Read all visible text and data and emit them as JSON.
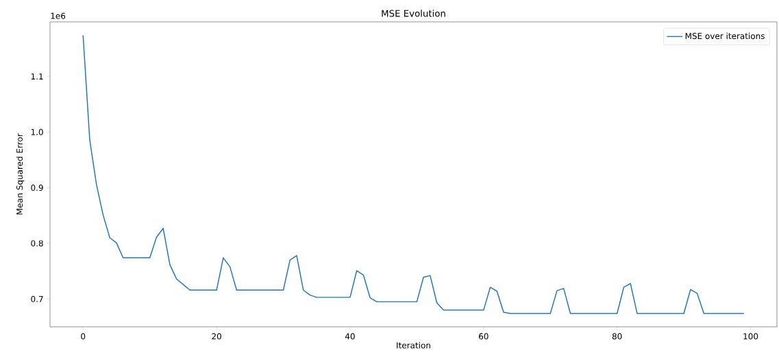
{
  "chart_data": {
    "type": "line",
    "title": "MSE Evolution",
    "xlabel": "Iteration",
    "ylabel": "Mean Squared Error",
    "annotations": [
      "1e6"
    ],
    "x": [
      0,
      1,
      2,
      3,
      4,
      5,
      6,
      7,
      8,
      9,
      10,
      11,
      12,
      13,
      14,
      15,
      16,
      17,
      18,
      19,
      20,
      21,
      22,
      23,
      24,
      25,
      26,
      27,
      28,
      29,
      30,
      31,
      32,
      33,
      34,
      35,
      36,
      37,
      38,
      39,
      40,
      41,
      42,
      43,
      44,
      45,
      46,
      47,
      48,
      49,
      50,
      51,
      52,
      53,
      54,
      55,
      56,
      57,
      58,
      59,
      60,
      61,
      62,
      63,
      64,
      65,
      66,
      67,
      68,
      69,
      70,
      71,
      72,
      73,
      74,
      75,
      76,
      77,
      78,
      79,
      80,
      81,
      82,
      83,
      84,
      85,
      86,
      87,
      88,
      89,
      90,
      91,
      92,
      93,
      94,
      95,
      96,
      97,
      98,
      99
    ],
    "series": [
      {
        "name": "MSE over iterations",
        "color": "#1f77b4",
        "values": [
          1.174,
          0.986,
          0.906,
          0.851,
          0.81,
          0.801,
          0.774,
          0.774,
          0.774,
          0.774,
          0.774,
          0.811,
          0.827,
          0.762,
          0.736,
          0.726,
          0.716,
          0.716,
          0.716,
          0.716,
          0.716,
          0.774,
          0.758,
          0.716,
          0.716,
          0.716,
          0.716,
          0.716,
          0.716,
          0.716,
          0.716,
          0.77,
          0.778,
          0.716,
          0.707,
          0.703,
          0.703,
          0.703,
          0.703,
          0.703,
          0.703,
          0.751,
          0.743,
          0.702,
          0.695,
          0.695,
          0.695,
          0.695,
          0.695,
          0.695,
          0.695,
          0.739,
          0.742,
          0.693,
          0.68,
          0.68,
          0.68,
          0.68,
          0.68,
          0.68,
          0.68,
          0.721,
          0.714,
          0.676,
          0.674,
          0.674,
          0.674,
          0.674,
          0.674,
          0.674,
          0.674,
          0.715,
          0.719,
          0.674,
          0.674,
          0.674,
          0.674,
          0.674,
          0.674,
          0.674,
          0.674,
          0.721,
          0.728,
          0.674,
          0.674,
          0.674,
          0.674,
          0.674,
          0.674,
          0.674,
          0.674,
          0.717,
          0.71,
          0.674,
          0.674,
          0.674,
          0.674,
          0.674,
          0.674,
          0.674
        ]
      }
    ],
    "xlim": [
      -4.95,
      103.95
    ],
    "ylim": [
      0.65,
      1.198
    ],
    "xticks": [
      0,
      20,
      40,
      60,
      80,
      100
    ],
    "yticks": [
      0.7,
      0.8,
      0.9,
      {
        "value": 1,
        "label": "1.0"
      },
      1.1
    ],
    "legend": "top right",
    "grid": false,
    "marker": "none",
    "line_style": "solid"
  }
}
